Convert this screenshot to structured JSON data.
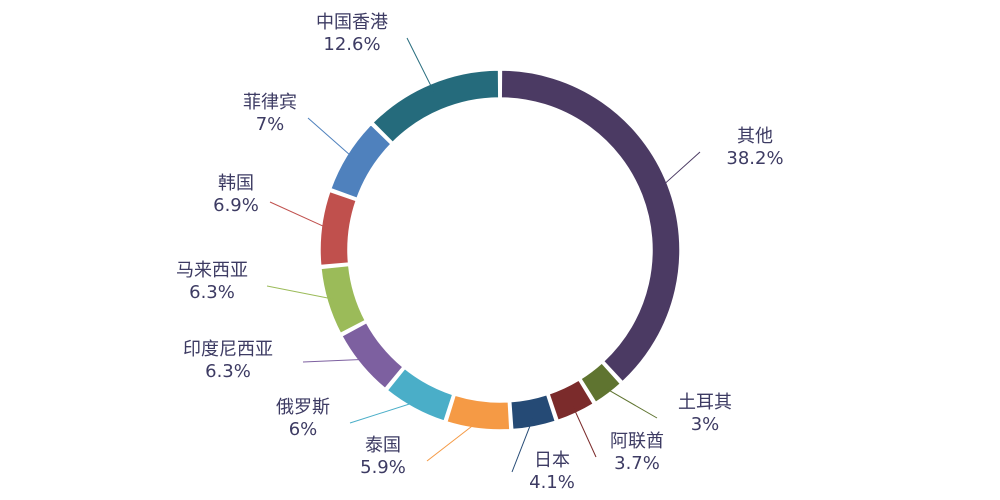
{
  "chart_data": {
    "type": "pie",
    "style": "donut",
    "title": "",
    "legend": "none",
    "unit": "%",
    "categories": [
      "其他",
      "土耳其",
      "阿联酋",
      "日本",
      "泰国",
      "俄罗斯",
      "印度尼西亚",
      "马来西亚",
      "韩国",
      "菲律宾",
      "中国香港"
    ],
    "values": [
      38.2,
      3,
      3.7,
      4.1,
      5.9,
      6,
      6.3,
      6.3,
      6.9,
      7,
      12.6
    ],
    "value_labels": [
      "38.2%",
      "3%",
      "3.7%",
      "4.1%",
      "5.9%",
      "6%",
      "6.3%",
      "6.3%",
      "6.9%",
      "7%",
      "12.6%"
    ],
    "colors": [
      "#4b3a63",
      "#5f7430",
      "#7b2b2b",
      "#254a75",
      "#f59a45",
      "#4aaec8",
      "#7d60a0",
      "#9bbb59",
      "#c0504d",
      "#4f81bd",
      "#256b7c"
    ]
  }
}
